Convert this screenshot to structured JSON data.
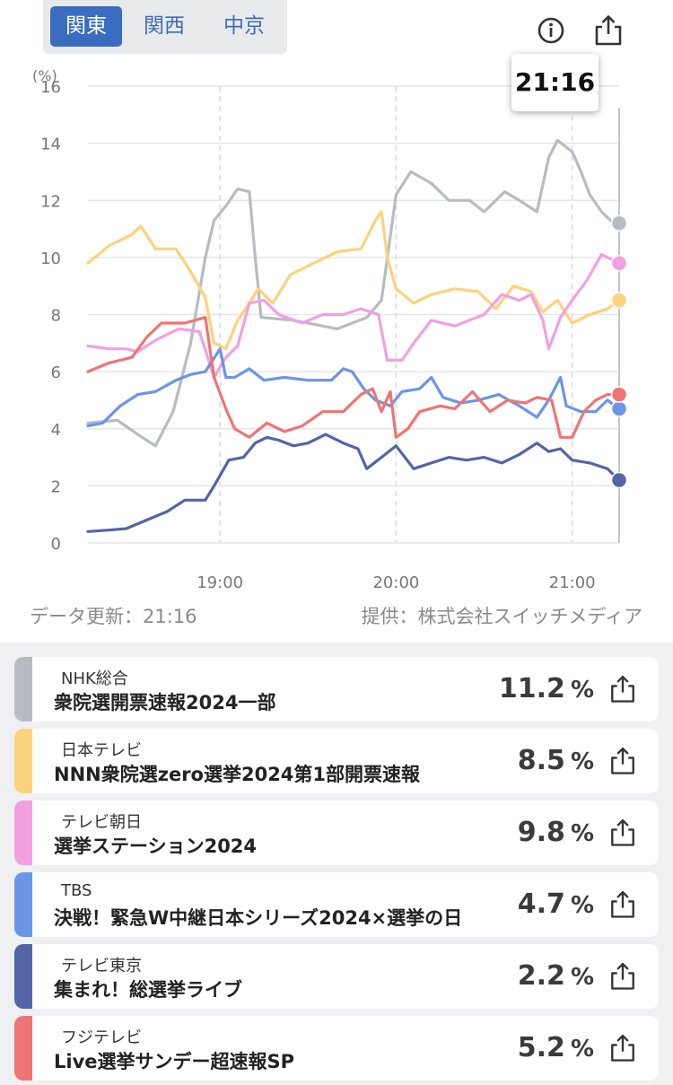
{
  "regions": {
    "tabs": [
      "関東",
      "関西",
      "中京"
    ],
    "active": 0
  },
  "tooltip": {
    "time": "21:16"
  },
  "footer": {
    "update": "データ更新：21:16",
    "provider": "提供：株式会社スイッチメディア"
  },
  "icons": {
    "info": "info-icon",
    "share": "share-icon"
  },
  "chart_data": {
    "type": "line",
    "ylabel": "(%)",
    "ylim": [
      0,
      16
    ],
    "yticks": [
      0,
      2,
      4,
      6,
      8,
      10,
      12,
      14,
      16
    ],
    "xlim": [
      "18:15",
      "21:16"
    ],
    "xticks": [
      "19:00",
      "20:00",
      "21:00"
    ],
    "grid": true,
    "cursor_time": "21:16",
    "series": [
      {
        "name": "NHK総合",
        "color": "#b7bcc3",
        "points": [
          [
            "18:15",
            4.2
          ],
          [
            "18:25",
            4.3
          ],
          [
            "18:32",
            3.8
          ],
          [
            "18:38",
            3.4
          ],
          [
            "18:44",
            4.6
          ],
          [
            "18:50",
            7.0
          ],
          [
            "18:55",
            10.0
          ],
          [
            "18:58",
            11.3
          ],
          [
            "19:02",
            11.8
          ],
          [
            "19:06",
            12.4
          ],
          [
            "19:10",
            12.3
          ],
          [
            "19:12",
            10.0
          ],
          [
            "19:14",
            7.9
          ],
          [
            "19:25",
            7.8
          ],
          [
            "19:40",
            7.5
          ],
          [
            "19:50",
            7.9
          ],
          [
            "19:55",
            8.5
          ],
          [
            "20:00",
            12.2
          ],
          [
            "20:05",
            13.0
          ],
          [
            "20:12",
            12.6
          ],
          [
            "20:18",
            12.0
          ],
          [
            "20:25",
            12.0
          ],
          [
            "20:30",
            11.6
          ],
          [
            "20:37",
            12.3
          ],
          [
            "20:42",
            12.0
          ],
          [
            "20:48",
            11.6
          ],
          [
            "20:52",
            13.5
          ],
          [
            "20:55",
            14.1
          ],
          [
            "21:00",
            13.7
          ],
          [
            "21:03",
            13.0
          ],
          [
            "21:06",
            12.2
          ],
          [
            "21:10",
            11.6
          ],
          [
            "21:14",
            11.2
          ],
          [
            "21:16",
            11.2
          ]
        ]
      },
      {
        "name": "日本テレビ",
        "color": "#fcd27b",
        "points": [
          [
            "18:15",
            9.8
          ],
          [
            "18:22",
            10.4
          ],
          [
            "18:30",
            10.8
          ],
          [
            "18:33",
            11.1
          ],
          [
            "18:38",
            10.3
          ],
          [
            "18:45",
            10.3
          ],
          [
            "18:50",
            9.5
          ],
          [
            "18:55",
            8.6
          ],
          [
            "18:58",
            7.0
          ],
          [
            "19:02",
            6.8
          ],
          [
            "19:06",
            7.8
          ],
          [
            "19:10",
            8.4
          ],
          [
            "19:13",
            8.9
          ],
          [
            "19:18",
            8.4
          ],
          [
            "19:24",
            9.4
          ],
          [
            "19:32",
            9.8
          ],
          [
            "19:40",
            10.2
          ],
          [
            "19:48",
            10.3
          ],
          [
            "19:53",
            11.3
          ],
          [
            "19:55",
            11.6
          ],
          [
            "19:57",
            10.0
          ],
          [
            "20:00",
            8.9
          ],
          [
            "20:06",
            8.4
          ],
          [
            "20:12",
            8.7
          ],
          [
            "20:20",
            8.9
          ],
          [
            "20:28",
            8.8
          ],
          [
            "20:34",
            8.2
          ],
          [
            "20:40",
            9.0
          ],
          [
            "20:46",
            8.8
          ],
          [
            "20:50",
            8.1
          ],
          [
            "20:55",
            8.5
          ],
          [
            "21:00",
            7.7
          ],
          [
            "21:06",
            8.0
          ],
          [
            "21:12",
            8.2
          ],
          [
            "21:16",
            8.5
          ]
        ]
      },
      {
        "name": "テレビ朝日",
        "color": "#f2a0df",
        "points": [
          [
            "18:15",
            6.9
          ],
          [
            "18:22",
            6.8
          ],
          [
            "18:28",
            6.8
          ],
          [
            "18:32",
            6.7
          ],
          [
            "18:38",
            7.1
          ],
          [
            "18:46",
            7.5
          ],
          [
            "18:53",
            7.4
          ],
          [
            "18:58",
            5.8
          ],
          [
            "19:02",
            6.5
          ],
          [
            "19:06",
            6.9
          ],
          [
            "19:10",
            8.4
          ],
          [
            "19:15",
            8.5
          ],
          [
            "19:20",
            8.0
          ],
          [
            "19:28",
            7.7
          ],
          [
            "19:35",
            8.0
          ],
          [
            "19:42",
            8.0
          ],
          [
            "19:48",
            8.2
          ],
          [
            "19:54",
            8.0
          ],
          [
            "19:57",
            6.4
          ],
          [
            "20:02",
            6.4
          ],
          [
            "20:06",
            7.0
          ],
          [
            "20:12",
            7.8
          ],
          [
            "20:20",
            7.6
          ],
          [
            "20:30",
            8.0
          ],
          [
            "20:36",
            8.7
          ],
          [
            "20:42",
            8.5
          ],
          [
            "20:46",
            8.7
          ],
          [
            "20:50",
            7.8
          ],
          [
            "20:52",
            6.8
          ],
          [
            "20:56",
            7.9
          ],
          [
            "21:00",
            8.5
          ],
          [
            "21:05",
            9.2
          ],
          [
            "21:10",
            10.1
          ],
          [
            "21:16",
            9.8
          ]
        ]
      },
      {
        "name": "TBS",
        "color": "#6b95e6",
        "points": [
          [
            "18:15",
            4.1
          ],
          [
            "18:20",
            4.2
          ],
          [
            "18:26",
            4.8
          ],
          [
            "18:32",
            5.2
          ],
          [
            "18:38",
            5.3
          ],
          [
            "18:45",
            5.7
          ],
          [
            "18:50",
            5.9
          ],
          [
            "18:55",
            6.0
          ],
          [
            "19:00",
            6.8
          ],
          [
            "19:02",
            5.8
          ],
          [
            "19:05",
            5.8
          ],
          [
            "19:10",
            6.1
          ],
          [
            "19:15",
            5.7
          ],
          [
            "19:22",
            5.8
          ],
          [
            "19:30",
            5.7
          ],
          [
            "19:38",
            5.7
          ],
          [
            "19:42",
            6.1
          ],
          [
            "19:45",
            6.0
          ],
          [
            "19:49",
            5.4
          ],
          [
            "19:53",
            5.0
          ],
          [
            "19:58",
            4.8
          ],
          [
            "20:02",
            5.3
          ],
          [
            "20:08",
            5.4
          ],
          [
            "20:12",
            5.8
          ],
          [
            "20:16",
            5.1
          ],
          [
            "20:22",
            4.9
          ],
          [
            "20:28",
            5.0
          ],
          [
            "20:35",
            5.2
          ],
          [
            "20:42",
            4.8
          ],
          [
            "20:48",
            4.4
          ],
          [
            "20:52",
            5.0
          ],
          [
            "20:56",
            5.8
          ],
          [
            "20:58",
            4.8
          ],
          [
            "21:03",
            4.6
          ],
          [
            "21:08",
            4.6
          ],
          [
            "21:12",
            5.0
          ],
          [
            "21:16",
            4.7
          ]
        ]
      },
      {
        "name": "テレビ東京",
        "color": "#5365a8",
        "points": [
          [
            "18:15",
            0.4
          ],
          [
            "18:22",
            0.45
          ],
          [
            "18:28",
            0.5
          ],
          [
            "18:35",
            0.8
          ],
          [
            "18:42",
            1.1
          ],
          [
            "18:48",
            1.5
          ],
          [
            "18:55",
            1.5
          ],
          [
            "18:58",
            2.0
          ],
          [
            "19:03",
            2.9
          ],
          [
            "19:08",
            3.0
          ],
          [
            "19:12",
            3.5
          ],
          [
            "19:16",
            3.7
          ],
          [
            "19:20",
            3.6
          ],
          [
            "19:25",
            3.4
          ],
          [
            "19:30",
            3.5
          ],
          [
            "19:36",
            3.8
          ],
          [
            "19:42",
            3.5
          ],
          [
            "19:47",
            3.3
          ],
          [
            "19:50",
            2.6
          ],
          [
            "19:55",
            3.0
          ],
          [
            "20:00",
            3.4
          ],
          [
            "20:06",
            2.6
          ],
          [
            "20:12",
            2.8
          ],
          [
            "20:18",
            3.0
          ],
          [
            "20:24",
            2.9
          ],
          [
            "20:30",
            3.0
          ],
          [
            "20:36",
            2.8
          ],
          [
            "20:42",
            3.1
          ],
          [
            "20:48",
            3.5
          ],
          [
            "20:52",
            3.2
          ],
          [
            "20:56",
            3.3
          ],
          [
            "21:00",
            2.9
          ],
          [
            "21:06",
            2.8
          ],
          [
            "21:12",
            2.6
          ],
          [
            "21:16",
            2.2
          ]
        ]
      },
      {
        "name": "フジテレビ",
        "color": "#ef7474",
        "points": [
          [
            "18:15",
            6.0
          ],
          [
            "18:22",
            6.3
          ],
          [
            "18:30",
            6.5
          ],
          [
            "18:35",
            7.2
          ],
          [
            "18:40",
            7.7
          ],
          [
            "18:48",
            7.7
          ],
          [
            "18:55",
            7.9
          ],
          [
            "18:58",
            5.8
          ],
          [
            "19:02",
            4.7
          ],
          [
            "19:05",
            4.0
          ],
          [
            "19:10",
            3.7
          ],
          [
            "19:16",
            4.2
          ],
          [
            "19:22",
            3.9
          ],
          [
            "19:28",
            4.1
          ],
          [
            "19:35",
            4.6
          ],
          [
            "19:42",
            4.6
          ],
          [
            "19:48",
            5.2
          ],
          [
            "19:52",
            5.4
          ],
          [
            "19:55",
            4.6
          ],
          [
            "19:58",
            5.3
          ],
          [
            "20:00",
            3.7
          ],
          [
            "20:04",
            4.0
          ],
          [
            "20:08",
            4.6
          ],
          [
            "20:15",
            4.8
          ],
          [
            "20:20",
            4.7
          ],
          [
            "20:26",
            5.3
          ],
          [
            "20:32",
            4.6
          ],
          [
            "20:38",
            5.0
          ],
          [
            "20:44",
            4.9
          ],
          [
            "20:48",
            5.1
          ],
          [
            "20:53",
            5.0
          ],
          [
            "20:56",
            3.7
          ],
          [
            "21:00",
            3.7
          ],
          [
            "21:04",
            4.6
          ],
          [
            "21:08",
            5.0
          ],
          [
            "21:12",
            5.2
          ],
          [
            "21:16",
            5.2
          ]
        ]
      }
    ]
  },
  "rows": [
    {
      "channel": "NHK総合",
      "program": "衆院選開票速報2024一部",
      "value": "11.2",
      "unit": "%",
      "color": "#b7bcc3"
    },
    {
      "channel": "日本テレビ",
      "program": "NNN衆院選zero選挙2024第1部開票速報",
      "value": "8.5",
      "unit": "%",
      "color": "#fcd27b"
    },
    {
      "channel": "テレビ朝日",
      "program": "選挙ステーション2024",
      "value": "9.8",
      "unit": "%",
      "color": "#f2a0df"
    },
    {
      "channel": "TBS",
      "program": "決戦！緊急W中継日本シリーズ2024×選挙の日",
      "value": "4.7",
      "unit": "%",
      "color": "#6b95e6"
    },
    {
      "channel": "テレビ東京",
      "program": "集まれ！総選挙ライブ",
      "value": "2.2",
      "unit": "%",
      "color": "#5365a8"
    },
    {
      "channel": "フジテレビ",
      "program": "Live選挙サンデー超速報SP",
      "value": "5.2",
      "unit": "%",
      "color": "#ef7474"
    }
  ]
}
